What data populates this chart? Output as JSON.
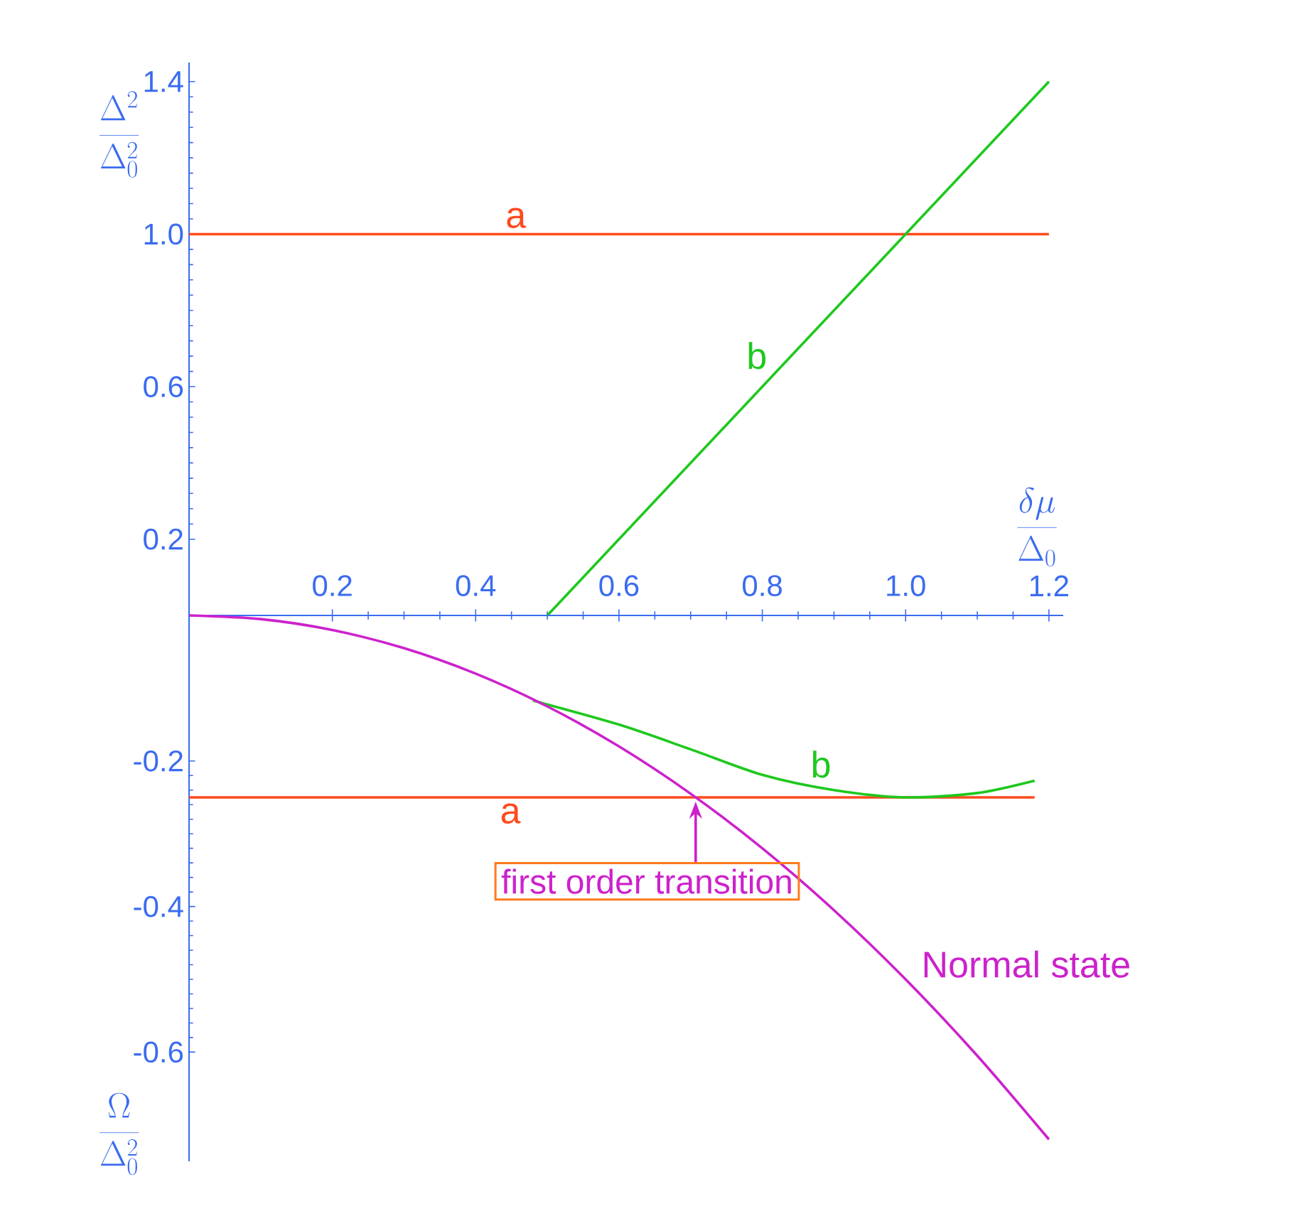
{
  "chart_data": [
    {
      "type": "line",
      "xlabel": "\\frac{\\delta\\mu}{\\Delta_0}",
      "ylabel": "\\frac{\\Delta^2}{\\Delta_0^2}",
      "xlim": [
        0,
        1.22
      ],
      "ylim": [
        0,
        1.45
      ],
      "xticks": [
        0.2,
        0.4,
        0.6,
        0.8,
        {
          "value": 1.0,
          "label": "1.0"
        },
        1.2
      ],
      "yticks": [
        0.2,
        0.6,
        {
          "value": 1.0,
          "label": "1.0"
        },
        1.4
      ],
      "series": [
        {
          "name": "a",
          "color": "#ff4a1c",
          "x": [
            0,
            1.2
          ],
          "values": [
            1.0,
            1.0
          ]
        },
        {
          "name": "b",
          "color": "#1ec81e",
          "x": [
            0.5,
            1.2
          ],
          "values": [
            0.0,
            1.4
          ]
        }
      ]
    },
    {
      "type": "line",
      "ylabel": "\\frac{\\Omega}{\\Delta_0^2}",
      "xlim": [
        0,
        1.22
      ],
      "ylim": [
        -0.75,
        0
      ],
      "xticks": [
        0.2,
        0.4,
        0.6,
        0.8,
        1.0,
        1.2
      ],
      "yticks": [
        -0.2,
        -0.4,
        -0.6
      ],
      "tick_labels": "y",
      "series": [
        {
          "name": "a",
          "color": "#ff4a1c",
          "x": [
            0,
            1.18
          ],
          "values": [
            -0.25,
            -0.25
          ]
        },
        {
          "name": "b",
          "color": "#1ec81e",
          "x": [
            0.48,
            0.6,
            0.7,
            0.8,
            0.9,
            1.0,
            1.1,
            1.18
          ],
          "values": [
            -0.117,
            -0.15,
            -0.184,
            -0.219,
            -0.24,
            -0.25,
            -0.244,
            -0.227
          ]
        },
        {
          "name": "Normal state",
          "color": "#cc22cc",
          "x": [
            0,
            0.1,
            0.2,
            0.3,
            0.4,
            0.5,
            0.6,
            0.7,
            0.8,
            0.9,
            1.0,
            1.1,
            1.2
          ],
          "values": [
            0,
            -0.005,
            -0.02,
            -0.045,
            -0.08,
            -0.125,
            -0.18,
            -0.245,
            -0.32,
            -0.405,
            -0.5,
            -0.605,
            -0.72
          ]
        }
      ],
      "annotations": [
        {
          "text": "first order transition",
          "x": 0.707,
          "y": -0.25
        }
      ]
    }
  ]
}
